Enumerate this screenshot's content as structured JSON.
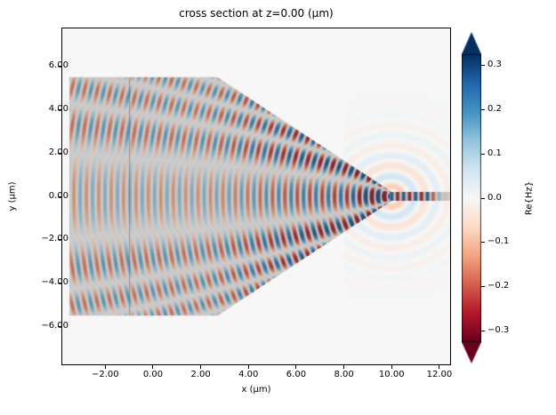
{
  "chart_data": {
    "type": "heatmap",
    "title": "cross section at z=0.00 (µm)",
    "xlabel": "x (µm)",
    "ylabel": "y (µm)",
    "xlim": [
      -3.8,
      12.45
    ],
    "ylim": [
      -7.75,
      7.75
    ],
    "grid": false,
    "background": "#ffffff",
    "field_quantity": "Re{Hz}",
    "xticks": [
      {
        "value": -2,
        "label": "−2.00"
      },
      {
        "value": 0,
        "label": "0.00"
      },
      {
        "value": 2,
        "label": "2.00"
      },
      {
        "value": 4,
        "label": "4.00"
      },
      {
        "value": 6,
        "label": "6.00"
      },
      {
        "value": 8,
        "label": "8.00"
      },
      {
        "value": 10,
        "label": "10.00"
      },
      {
        "value": 12,
        "label": "12.00"
      }
    ],
    "yticks": [
      {
        "value": 6,
        "label": "6.00"
      },
      {
        "value": 4,
        "label": "4.00"
      },
      {
        "value": 2,
        "label": "2.00"
      },
      {
        "value": 0,
        "label": "0.00"
      },
      {
        "value": -2,
        "label": "−2.00"
      },
      {
        "value": -4,
        "label": "−4.00"
      },
      {
        "value": -6,
        "label": "−6.00"
      }
    ],
    "colorbar": {
      "label": "Re{Hz}",
      "vmin": -0.325,
      "vmax": 0.325,
      "extend": "both",
      "ticks": [
        {
          "value": 0.3,
          "label": "0.3"
        },
        {
          "value": 0.2,
          "label": "0.2"
        },
        {
          "value": 0.1,
          "label": "0.1"
        },
        {
          "value": 0.0,
          "label": "0.0"
        },
        {
          "value": -0.1,
          "label": "−0.1"
        },
        {
          "value": -0.2,
          "label": "−0.2"
        },
        {
          "value": -0.3,
          "label": "−0.3"
        }
      ]
    },
    "colormap": {
      "name": "RdBu",
      "stops": [
        [
          0.0,
          "#67001f"
        ],
        [
          0.1,
          "#b2182b"
        ],
        [
          0.2,
          "#d6604d"
        ],
        [
          0.3,
          "#f4a582"
        ],
        [
          0.4,
          "#fddbc7"
        ],
        [
          0.5,
          "#f7f7f7"
        ],
        [
          0.6,
          "#d1e5f0"
        ],
        [
          0.7,
          "#92c5de"
        ],
        [
          0.8,
          "#4393c3"
        ],
        [
          0.9,
          "#2166ac"
        ],
        [
          1.0,
          "#053061"
        ]
      ]
    },
    "structure": {
      "description": "Gray semi-transparent overlay of a slab tapering into a narrow waveguide",
      "overlay_color": "rgba(128,128,128,0.35)",
      "polygon": [
        [
          -3.5,
          5.5
        ],
        [
          2.7,
          5.5
        ],
        [
          10.0,
          0.2
        ],
        [
          12.45,
          0.2
        ],
        [
          12.45,
          -0.2
        ],
        [
          10.0,
          -0.2
        ],
        [
          2.7,
          -5.5
        ],
        [
          -3.5,
          -5.5
        ]
      ],
      "slab_x": [
        -3.5,
        2.7
      ],
      "slab_halfheight": 5.5,
      "taper_slope": 0.726,
      "tip_x": 10.0,
      "wg_halfheight": 0.2,
      "source_line_x": -1.0,
      "source_line_color": "rgba(100,100,100,0.6)"
    },
    "wave": {
      "lam_in": 0.52,
      "lam_wg": 0.5,
      "lam_out": 0.95,
      "tip": [
        10.0,
        0.0
      ],
      "radiation_amp": 0.34,
      "radiation_decay": 1.5
    }
  }
}
